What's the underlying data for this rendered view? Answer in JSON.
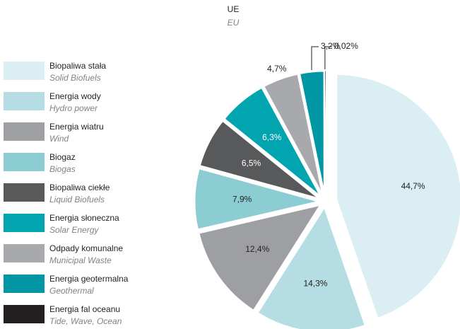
{
  "chart_data": {
    "type": "pie",
    "title": "UE",
    "subtitle": "EU",
    "categories": [
      "Biopaliwa stała",
      "Energia wody",
      "Energia wiatru",
      "Biogaz",
      "Biopaliwa ciekłe",
      "Energia słoneczna",
      "Odpady komunalne",
      "Energia geotermalna",
      "Energia fal oceanu"
    ],
    "category_translations": [
      "Solid Biofuels",
      "Hydro power",
      "Wind",
      "Biogas",
      "Liquid Biofuels",
      "Solar Energy",
      "Municipal Waste",
      "Geothermal",
      "Tide, Wave, Ocean"
    ],
    "values": [
      44.7,
      14.3,
      12.4,
      7.9,
      6.5,
      6.3,
      4.7,
      3.2,
      0.02
    ],
    "value_labels": [
      "44,7%",
      "14,3%",
      "12,4%",
      "7,9%",
      "6,5%",
      "6,3%",
      "4,7%",
      "3,2%",
      "0,02%"
    ],
    "colors": [
      "#dbeef3",
      "#b5dde3",
      "#9d9fa2",
      "#8ccdd3",
      "#58595b",
      "#00a5b0",
      "#a7a9ac",
      "#0096a3",
      "#231f20"
    ],
    "legend": "left"
  }
}
